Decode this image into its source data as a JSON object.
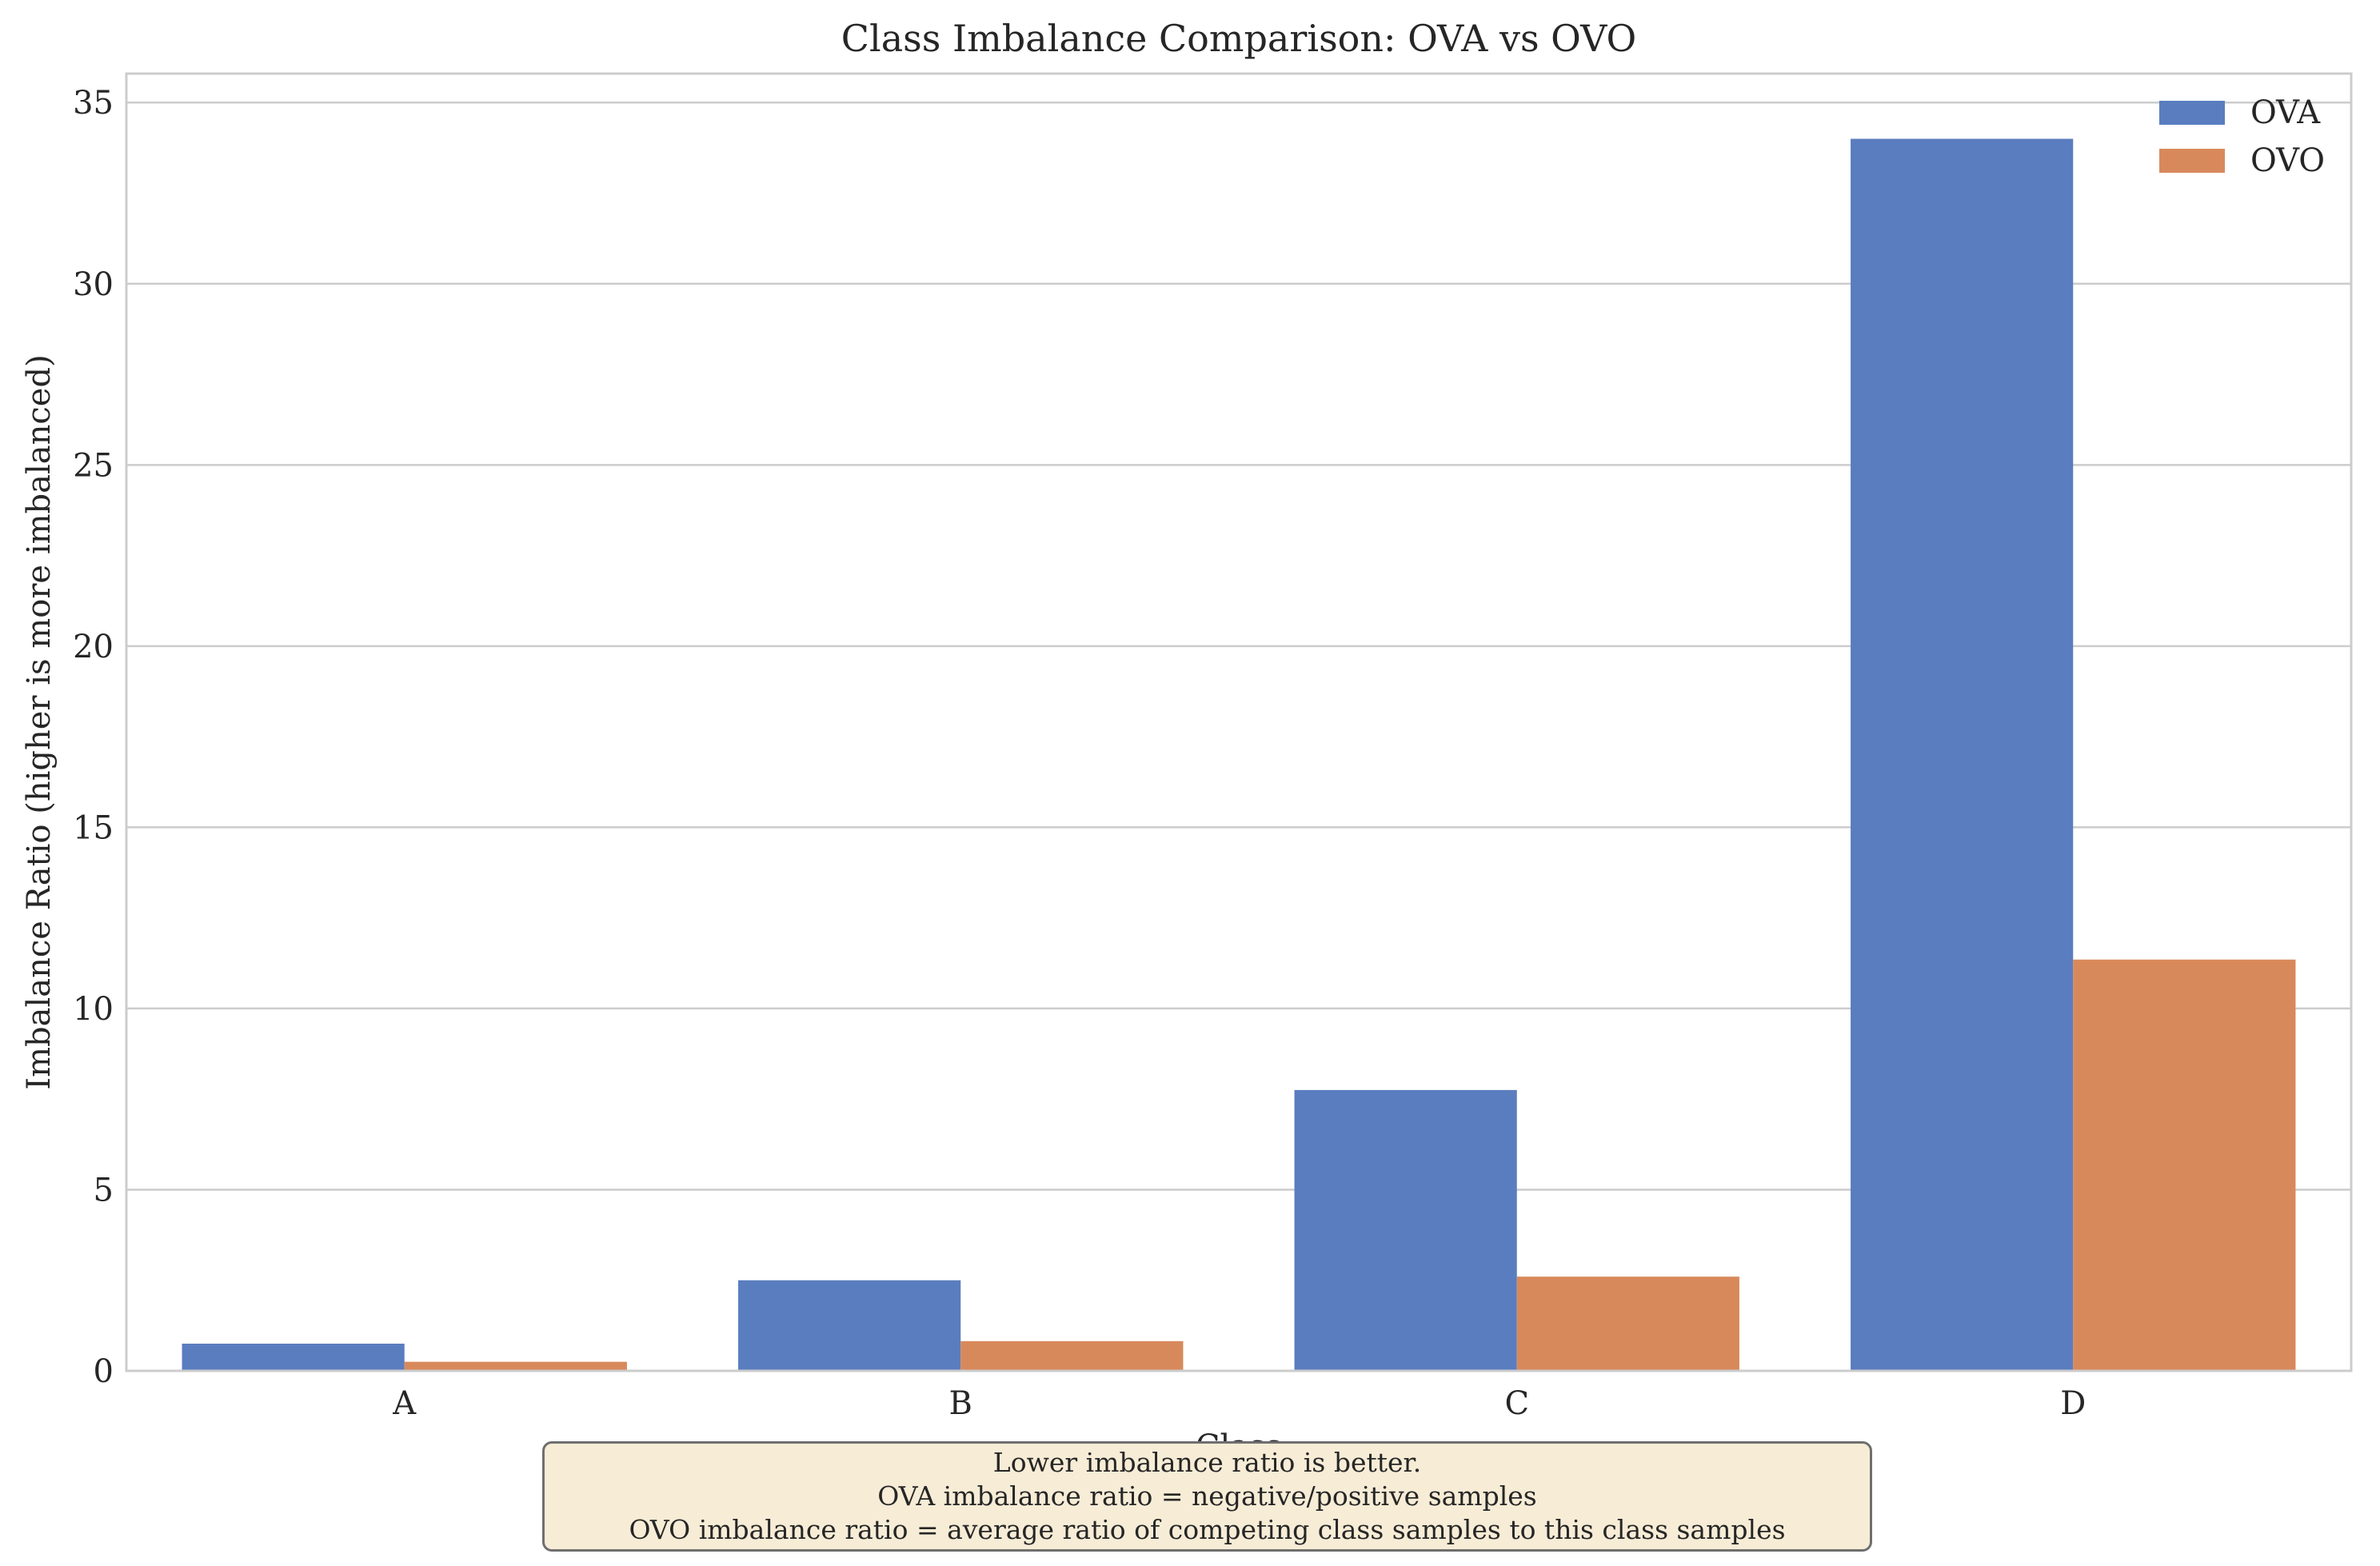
{
  "chart_data": {
    "type": "bar",
    "title": "Class Imbalance Comparison: OVA vs OVO",
    "xlabel": "Class",
    "ylabel": "Imbalance Ratio (higher is more imbalanced)",
    "categories": [
      "A",
      "B",
      "C",
      "D"
    ],
    "series": [
      {
        "name": "OVA",
        "color": "#5a7dbf",
        "values": [
          0.75,
          2.5,
          7.75,
          34.0
        ]
      },
      {
        "name": "OVO",
        "color": "#d8895b",
        "values": [
          0.25,
          0.82,
          2.6,
          11.35
        ]
      }
    ],
    "ylim": [
      0,
      35.8
    ],
    "yticks": [
      0,
      5,
      10,
      15,
      20,
      25,
      30,
      35
    ],
    "grid": "y",
    "legend": "top-right"
  },
  "annotation": {
    "lines": [
      "Lower imbalance ratio is better.",
      "OVA imbalance ratio = negative/positive samples",
      "OVO imbalance ratio = average ratio of competing class samples to this class samples"
    ]
  }
}
